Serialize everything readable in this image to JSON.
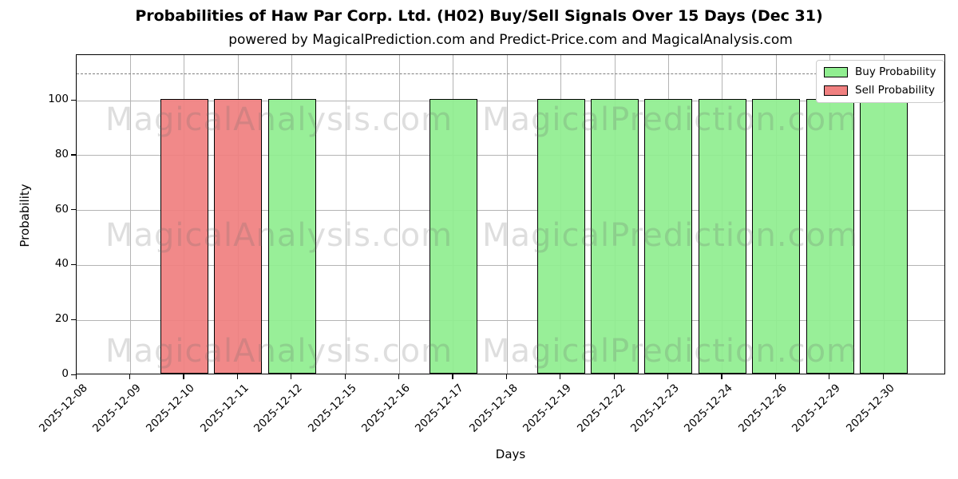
{
  "chart_data": {
    "type": "bar",
    "title": "Probabilities of Haw Par Corp. Ltd. (H02) Buy/Sell Signals Over 15 Days (Dec 31)",
    "subtitle": "powered by MagicalPrediction.com and Predict-Price.com and MagicalAnalysis.com",
    "xlabel": "Days",
    "ylabel": "Probability",
    "categories": [
      "2025-12-08",
      "2025-12-09",
      "2025-12-10",
      "2025-12-11",
      "2025-12-12",
      "2025-12-15",
      "2025-12-16",
      "2025-12-17",
      "2025-12-18",
      "2025-12-19",
      "2025-12-22",
      "2025-12-23",
      "2025-12-24",
      "2025-12-26",
      "2025-12-29",
      "2025-12-30"
    ],
    "series": [
      {
        "name": "Buy Probability",
        "color": "#90EE90",
        "values": [
          0,
          0,
          0,
          0,
          100,
          0,
          0,
          100,
          0,
          100,
          100,
          100,
          100,
          100,
          100,
          100
        ]
      },
      {
        "name": "Sell Probability",
        "color": "#F08080",
        "values": [
          0,
          0,
          100,
          100,
          0,
          0,
          0,
          0,
          0,
          0,
          0,
          0,
          0,
          0,
          0,
          0
        ]
      }
    ],
    "yticks": [
      0,
      20,
      40,
      60,
      80,
      100
    ],
    "ylim": [
      0,
      116.6
    ],
    "grid": true,
    "legend_position": "upper right",
    "dashed_reference_line_y": 110,
    "bar_edge_color": "#000000",
    "grid_color": "#b4b4b4",
    "dashed_line_color": "#7f7f7f"
  },
  "watermarks": {
    "rows": [
      {
        "left": "MagicalAnalysis.com",
        "right": "MagicalPrediction.com"
      },
      {
        "left": "MagicalAnalysis.com",
        "right": "MagicalPrediction.com"
      },
      {
        "left": "MagicalAnalysis.com",
        "right": "MagicalPrediction.com"
      }
    ]
  }
}
